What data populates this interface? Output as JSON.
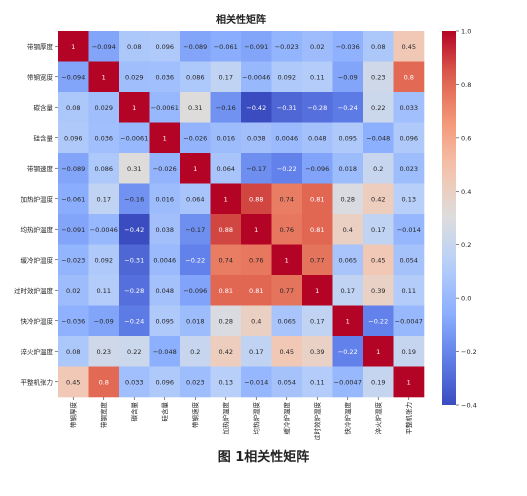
{
  "figure": {
    "caption": "图 1相关性矩阵"
  },
  "chart_data": {
    "type": "heatmap",
    "title": "相关性矩阵",
    "labels": [
      "带钢厚度",
      "带钢宽度",
      "碳含量",
      "硅含量",
      "带钢速度",
      "加热炉温度",
      "均热炉温度",
      "缓冷炉温度",
      "过时效炉温度",
      "快冷炉温度",
      "淬火炉温度",
      "平整机张力"
    ],
    "matrix": [
      [
        1,
        -0.094,
        0.08,
        0.096,
        -0.089,
        -0.061,
        -0.091,
        -0.023,
        0.02,
        -0.036,
        0.08,
        0.45
      ],
      [
        -0.094,
        1,
        0.029,
        0.036,
        0.086,
        0.17,
        -0.0046,
        0.092,
        0.11,
        -0.09,
        0.23,
        0.8
      ],
      [
        0.08,
        0.029,
        1,
        -0.0061,
        0.31,
        -0.16,
        -0.42,
        -0.31,
        -0.28,
        -0.24,
        0.22,
        0.033
      ],
      [
        0.096,
        0.036,
        -0.0061,
        1,
        -0.026,
        0.016,
        0.038,
        0.0046,
        0.048,
        0.095,
        -0.048,
        0.096
      ],
      [
        -0.089,
        0.086,
        0.31,
        -0.026,
        1,
        0.064,
        -0.17,
        -0.22,
        -0.096,
        0.018,
        0.2,
        0.023
      ],
      [
        -0.061,
        0.17,
        -0.16,
        0.016,
        0.064,
        1,
        0.88,
        0.74,
        0.81,
        0.28,
        0.42,
        0.13
      ],
      [
        -0.091,
        -0.0046,
        -0.42,
        0.038,
        -0.17,
        0.88,
        1,
        0.76,
        0.81,
        0.4,
        0.17,
        -0.014
      ],
      [
        -0.023,
        0.092,
        -0.31,
        0.0046,
        -0.22,
        0.74,
        0.76,
        1,
        0.77,
        0.065,
        0.45,
        0.054
      ],
      [
        0.02,
        0.11,
        -0.28,
        0.048,
        -0.096,
        0.81,
        0.81,
        0.77,
        1,
        0.17,
        0.39,
        0.11
      ],
      [
        -0.036,
        -0.09,
        -0.24,
        0.095,
        0.018,
        0.28,
        0.4,
        0.065,
        0.17,
        1,
        -0.22,
        -0.0047
      ],
      [
        0.08,
        0.23,
        0.22,
        -0.048,
        0.2,
        0.42,
        0.17,
        0.45,
        0.39,
        -0.22,
        1,
        0.19
      ],
      [
        0.45,
        0.8,
        0.033,
        0.096,
        0.023,
        0.13,
        -0.014,
        0.054,
        0.11,
        -0.0047,
        0.19,
        1
      ]
    ],
    "colormap": "coolwarm",
    "colorbar": {
      "range": [
        -0.4,
        1.0
      ],
      "ticks": [
        1.0,
        0.8,
        0.6,
        0.4,
        0.2,
        0.0,
        -0.2,
        -0.4
      ],
      "tick_labels": [
        "1.0",
        "0.8",
        "0.6",
        "0.4",
        "0.2",
        "0.0",
        "-0.2",
        "-0.4"
      ]
    }
  }
}
